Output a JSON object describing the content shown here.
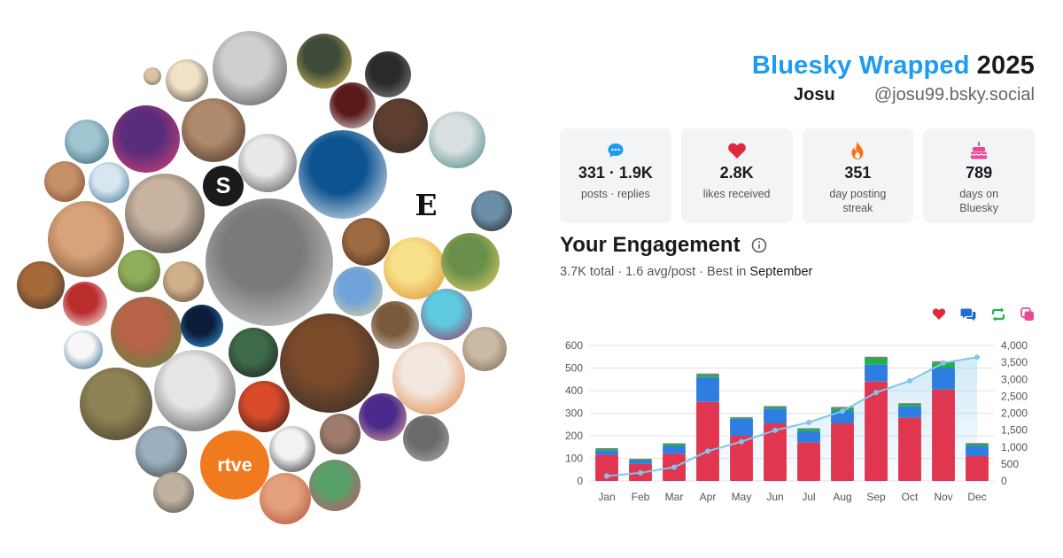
{
  "header": {
    "brand": "Bluesky Wrapped",
    "year": "2025",
    "display_name": "Josu",
    "handle": "@josu99.bsky.social"
  },
  "stats": [
    {
      "icon": "speech-bubble-icon",
      "value": "331 · 1.9K",
      "label": "posts · replies",
      "color": "#1d9bf0"
    },
    {
      "icon": "heart-icon",
      "value": "2.8K",
      "label": "likes received",
      "color": "#e0283e"
    },
    {
      "icon": "flame-icon",
      "value": "351",
      "label": "day posting streak",
      "color": "#f97316"
    },
    {
      "icon": "cake-icon",
      "value": "789",
      "label": "days on Bluesky",
      "color": "#ec4899"
    }
  ],
  "engagement": {
    "title": "Your Engagement",
    "total": "3.7K total",
    "avg": "1.6 avg/post",
    "best_prefix": "Best in",
    "best_month": "September",
    "legend_icons": [
      {
        "name": "likes-legend-icon",
        "color": "#e0283e"
      },
      {
        "name": "replies-legend-icon",
        "color": "#1d6fd6"
      },
      {
        "name": "reposts-legend-icon",
        "color": "#22b04b"
      },
      {
        "name": "quotes-legend-icon",
        "color": "#ec4899"
      }
    ]
  },
  "chart_data": {
    "type": "bar",
    "stacked": true,
    "categories": [
      "Jan",
      "Feb",
      "Mar",
      "Apr",
      "May",
      "Jun",
      "Jul",
      "Aug",
      "Sep",
      "Oct",
      "Nov",
      "Dec"
    ],
    "series": [
      {
        "color": "#e0364f",
        "values": [
          115,
          75,
          120,
          350,
          200,
          255,
          170,
          255,
          440,
          280,
          405,
          110
        ]
      },
      {
        "color": "#2f7de1",
        "values": [
          20,
          15,
          35,
          110,
          75,
          65,
          50,
          55,
          75,
          50,
          95,
          45
        ]
      },
      {
        "color": "#22b04b",
        "values": [
          8,
          6,
          10,
          12,
          6,
          10,
          12,
          15,
          32,
          12,
          25,
          10
        ]
      },
      {
        "color": "#ec4899",
        "values": [
          2,
          2,
          2,
          4,
          2,
          2,
          2,
          3,
          3,
          3,
          5,
          3
        ]
      }
    ],
    "cumulative": {
      "color": "#7ec6ec",
      "values": [
        145,
        240,
        405,
        880,
        1160,
        1495,
        1730,
        2060,
        2610,
        2955,
        3485,
        3650
      ]
    },
    "yticks_left": [
      "0",
      "100",
      "200",
      "300",
      "400",
      "500",
      "600"
    ],
    "yticks_right": [
      "0",
      "500",
      "1,000",
      "1,500",
      "2,000",
      "2,500",
      "3,000",
      "3,500",
      "4,000"
    ],
    "ylim_left": [
      0,
      600
    ],
    "ylim_right": [
      0,
      4000
    ],
    "grid": true
  },
  "avatars": [
    {
      "c1": "#d9c3a6",
      "c2": "#6b5a4a",
      "glyph": ""
    },
    {
      "c1": "#f1e1c6",
      "c2": "#3a3a3a",
      "glyph": ""
    },
    {
      "c1": "#cfcfcf",
      "c2": "#4a4a4a",
      "glyph": ""
    },
    {
      "c1": "#3e4a3a",
      "c2": "#f0d060",
      "glyph": ""
    },
    {
      "c1": "#2a2a2a",
      "c2": "#8a8a8a",
      "glyph": ""
    },
    {
      "c1": "#9fc5d0",
      "c2": "#2b5f6e",
      "glyph": ""
    },
    {
      "c1": "#5a2d7a",
      "c2": "#e0437b",
      "glyph": ""
    },
    {
      "c1": "#b08a6c",
      "c2": "#3d2a20",
      "glyph": ""
    },
    {
      "c1": "#1b1b1b",
      "c2": "#ffffff",
      "glyph": "S"
    },
    {
      "c1": "#5a1a1a",
      "c2": "#e6e6e6",
      "glyph": ""
    },
    {
      "c1": "#5e3f2f",
      "c2": "#2a2a2a",
      "glyph": ""
    },
    {
      "c1": "#d7dfe0",
      "c2": "#3f7f7a",
      "glyph": ""
    },
    {
      "c1": "#c58f68",
      "c2": "#7a4b2e",
      "glyph": ""
    },
    {
      "c1": "#d8e6f0",
      "c2": "#2d6a8f",
      "glyph": ""
    },
    {
      "c1": "#e8e8e8",
      "c2": "#444444",
      "glyph": ""
    },
    {
      "c1": "#0d5390",
      "c2": "#ffffff",
      "glyph": ""
    },
    {
      "c1": "#ffffff",
      "c2": "#111111",
      "glyph": "E"
    },
    {
      "c1": "#6c8fa8",
      "c2": "#222222",
      "glyph": ""
    },
    {
      "c1": "#d9a37a",
      "c2": "#6a4329",
      "glyph": ""
    },
    {
      "c1": "#c7b3a0",
      "c2": "#2b2b2b",
      "glyph": ""
    },
    {
      "c1": "#7a7a7a",
      "c2": "#dddddd",
      "glyph": ""
    },
    {
      "c1": "#9e6b43",
      "c2": "#3a2a1c",
      "glyph": ""
    },
    {
      "c1": "#f7e08a",
      "c2": "#d98b2b",
      "glyph": ""
    },
    {
      "c1": "#6a8f4a",
      "c2": "#e9d36b",
      "glyph": ""
    },
    {
      "c1": "#a66a3a",
      "c2": "#2e2e2e",
      "glyph": ""
    },
    {
      "c1": "#8fae5a",
      "c2": "#4a5a2a",
      "glyph": ""
    },
    {
      "c1": "#d0b08a",
      "c2": "#554433",
      "glyph": ""
    },
    {
      "c1": "#6fa3d9",
      "c2": "#e6d29a",
      "glyph": ""
    },
    {
      "c1": "#b92d2d",
      "c2": "#ffffff",
      "glyph": ""
    },
    {
      "c1": "#7a5a3a",
      "c2": "#d8d8d8",
      "glyph": ""
    },
    {
      "c1": "#5fc9e0",
      "c2": "#9c2a5a",
      "glyph": ""
    },
    {
      "c1": "#b8624a",
      "c2": "#4d8d3e",
      "glyph": ""
    },
    {
      "c1": "#0b1d3a",
      "c2": "#3aa0e8",
      "glyph": ""
    },
    {
      "c1": "#f7f7f7",
      "c2": "#1a5d8a",
      "glyph": ""
    },
    {
      "c1": "#3d6b4a",
      "c2": "#1b1b1b",
      "glyph": ""
    },
    {
      "c1": "#7a4a2a",
      "c2": "#2a2a2a",
      "glyph": ""
    },
    {
      "c1": "#f2e8df",
      "c2": "#e07a3a",
      "glyph": ""
    },
    {
      "c1": "#c9b9a5",
      "c2": "#7a6450",
      "glyph": ""
    },
    {
      "c1": "#e5e5e5",
      "c2": "#444444",
      "glyph": ""
    },
    {
      "c1": "#8f8254",
      "c2": "#3b3626",
      "glyph": ""
    },
    {
      "c1": "#d94a2b",
      "c2": "#1a1a1a",
      "glyph": ""
    },
    {
      "c1": "#4a2a8a",
      "c2": "#e9b0a0",
      "glyph": ""
    },
    {
      "c1": "#6a6a6a",
      "c2": "#b0b0b0",
      "glyph": ""
    },
    {
      "c1": "#9ab0c0",
      "c2": "#3a3a3a",
      "glyph": ""
    },
    {
      "c1": "#f07a1e",
      "c2": "#ffffff",
      "glyph": "rtve"
    },
    {
      "c1": "#f2f2f2",
      "c2": "#1a1a1a",
      "glyph": ""
    },
    {
      "c1": "#a07a6a",
      "c2": "#3a3a3a",
      "glyph": ""
    },
    {
      "c1": "#e3a07a",
      "c2": "#b04a3a",
      "glyph": ""
    },
    {
      "c1": "#5aa06a",
      "c2": "#d04a6a",
      "glyph": ""
    },
    {
      "c1": "#bfb3a0",
      "c2": "#444444",
      "glyph": ""
    },
    {
      "c1": "#c9a98a",
      "c2": "#554433",
      "glyph": ""
    },
    {
      "c1": "#d5a85a",
      "c2": "#3a2a1a",
      "glyph": ""
    }
  ]
}
